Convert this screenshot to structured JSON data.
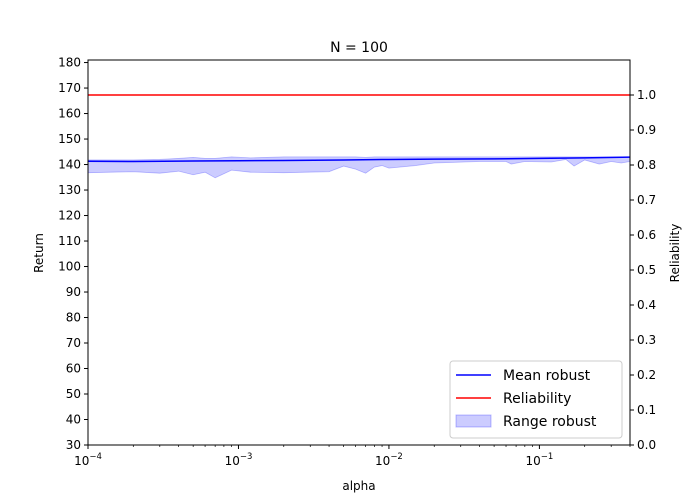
{
  "chart_data": {
    "type": "line",
    "title": "N = 100",
    "xlabel": "alpha",
    "ylabel": "Return",
    "y2label": "Reliability",
    "xscale": "log",
    "xlim": [
      0.0001,
      0.4
    ],
    "ylim": [
      30,
      181
    ],
    "y2lim": [
      0.0,
      1.1
    ],
    "grid": false,
    "legend_position": "bottom-right",
    "x_ticks": [
      {
        "value": 0.0001,
        "base": "10",
        "exp": "−4"
      },
      {
        "value": 0.001,
        "base": "10",
        "exp": "−3"
      },
      {
        "value": 0.01,
        "base": "10",
        "exp": "−2"
      },
      {
        "value": 0.1,
        "base": "10",
        "exp": "−1"
      }
    ],
    "y_ticks": [
      30,
      40,
      50,
      60,
      70,
      80,
      90,
      100,
      110,
      120,
      130,
      140,
      150,
      160,
      170,
      180
    ],
    "y2_ticks": [
      "0.0",
      "0.1",
      "0.2",
      "0.3",
      "0.4",
      "0.5",
      "0.6",
      "0.7",
      "0.8",
      "0.9",
      "1.0"
    ],
    "series": [
      {
        "name": "Mean robust",
        "color": "#0000ff",
        "axis": "left",
        "x": [
          0.0001,
          0.0002,
          0.0005,
          0.001,
          0.002,
          0.005,
          0.01,
          0.02,
          0.05,
          0.1,
          0.2,
          0.4
        ],
        "y": [
          141.3,
          141.2,
          141.4,
          141.5,
          141.6,
          141.8,
          142.0,
          142.1,
          142.2,
          142.4,
          142.6,
          142.9
        ]
      },
      {
        "name": "Reliability",
        "color": "#ff0000",
        "axis": "right",
        "x": [
          0.0001,
          0.4
        ],
        "y": [
          1.0,
          1.0
        ]
      }
    ],
    "band": {
      "name": "Range robust",
      "color": "#0000ff",
      "axis": "left",
      "x": [
        0.0001,
        0.0002,
        0.0003,
        0.0004,
        0.0005,
        0.0006,
        0.0007,
        0.0009,
        0.0012,
        0.002,
        0.004,
        0.005,
        0.006,
        0.007,
        0.008,
        0.009,
        0.01,
        0.015,
        0.02,
        0.04,
        0.06,
        0.065,
        0.08,
        0.12,
        0.15,
        0.17,
        0.2,
        0.25,
        0.3,
        0.35,
        0.4
      ],
      "upper": [
        141.8,
        141.8,
        142.0,
        142.4,
        142.8,
        142.4,
        142.4,
        143.0,
        142.6,
        143.0,
        143.0,
        143.0,
        143.0,
        142.8,
        143.0,
        143.0,
        143.0,
        143.0,
        143.0,
        143.0,
        143.0,
        143.0,
        143.0,
        143.0,
        143.0,
        143.0,
        143.0,
        143.0,
        143.0,
        143.0,
        143.0
      ],
      "lower": [
        136.8,
        137.2,
        136.6,
        137.4,
        136.0,
        137.0,
        134.8,
        137.8,
        137.0,
        136.8,
        137.2,
        139.4,
        138.2,
        136.6,
        139.0,
        139.6,
        138.6,
        139.6,
        140.6,
        141.2,
        141.2,
        140.2,
        141.2,
        141.0,
        142.0,
        139.4,
        141.8,
        140.2,
        141.2,
        140.6,
        141.2
      ]
    }
  }
}
